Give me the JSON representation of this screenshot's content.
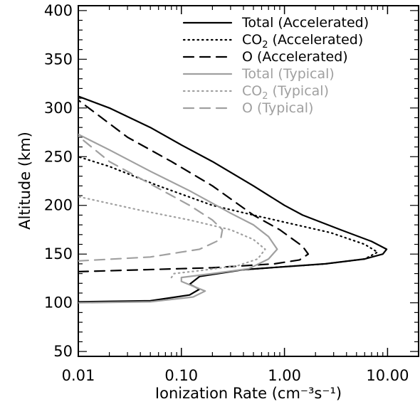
{
  "chart_data": {
    "type": "line",
    "xlabel": "Ionization Rate (cm⁻³s⁻¹)",
    "ylabel": "Altitude (km)",
    "xscale": "log",
    "xlim": [
      0.01,
      20
    ],
    "ylim": [
      45,
      405
    ],
    "x_tick_labels": [
      "0.01",
      "0.10",
      "1.00",
      "10.00"
    ],
    "y_tick_labels": [
      "50",
      "100",
      "150",
      "200",
      "250",
      "300",
      "350",
      "400"
    ],
    "legend_position": "top-right",
    "colors": {
      "accelerated": "#000000",
      "typical": "#a0a0a0"
    },
    "series": [
      {
        "name": "Total (Accelerated)",
        "color": "#000000",
        "dash": "solid",
        "points": [
          [
            0.01,
            101
          ],
          [
            0.05,
            102
          ],
          [
            0.12,
            108
          ],
          [
            0.15,
            114
          ],
          [
            0.12,
            119
          ],
          [
            0.15,
            127
          ],
          [
            0.4,
            134
          ],
          [
            1.0,
            137
          ],
          [
            2.5,
            140
          ],
          [
            6.0,
            145
          ],
          [
            9.0,
            150
          ],
          [
            9.8,
            155
          ],
          [
            7.0,
            163
          ],
          [
            3.5,
            175
          ],
          [
            1.5,
            190
          ],
          [
            1.0,
            200
          ],
          [
            0.5,
            220
          ],
          [
            0.2,
            245
          ],
          [
            0.1,
            262
          ],
          [
            0.05,
            280
          ],
          [
            0.02,
            300
          ],
          [
            0.01,
            312
          ]
        ]
      },
      {
        "name": "CO2 (Accelerated)",
        "color": "#000000",
        "dash": "dotted",
        "points": [
          [
            0.4,
            134
          ],
          [
            1.0,
            137
          ],
          [
            2.5,
            140
          ],
          [
            6.0,
            145
          ],
          [
            8.0,
            152
          ],
          [
            6.0,
            160
          ],
          [
            2.8,
            172
          ],
          [
            1.3,
            180
          ],
          [
            0.5,
            190
          ],
          [
            0.2,
            200
          ],
          [
            0.06,
            220
          ],
          [
            0.02,
            240
          ],
          [
            0.01,
            250
          ]
        ]
      },
      {
        "name": "O (Accelerated)",
        "color": "#000000",
        "dash": "dashed",
        "points": [
          [
            0.01,
            132
          ],
          [
            0.2,
            136
          ],
          [
            0.8,
            140
          ],
          [
            1.4,
            144
          ],
          [
            1.7,
            150
          ],
          [
            1.5,
            158
          ],
          [
            0.9,
            175
          ],
          [
            0.5,
            190
          ],
          [
            0.2,
            220
          ],
          [
            0.08,
            245
          ],
          [
            0.03,
            270
          ],
          [
            0.01,
            308
          ]
        ]
      },
      {
        "name": "Total (Typical)",
        "color": "#a0a0a0",
        "dash": "solid",
        "points": [
          [
            0.01,
            100
          ],
          [
            0.05,
            101
          ],
          [
            0.13,
            106
          ],
          [
            0.17,
            112
          ],
          [
            0.13,
            117
          ],
          [
            0.1,
            122
          ],
          [
            0.1,
            126
          ],
          [
            0.2,
            130
          ],
          [
            0.45,
            135
          ],
          [
            0.7,
            145
          ],
          [
            0.85,
            155
          ],
          [
            0.7,
            168
          ],
          [
            0.5,
            180
          ],
          [
            0.3,
            192
          ],
          [
            0.12,
            215
          ],
          [
            0.05,
            235
          ],
          [
            0.02,
            257
          ],
          [
            0.01,
            273
          ]
        ]
      },
      {
        "name": "CO2 (Typical)",
        "color": "#a0a0a0",
        "dash": "dotted",
        "points": [
          [
            0.08,
            126
          ],
          [
            0.085,
            130
          ],
          [
            0.15,
            133
          ],
          [
            0.35,
            138
          ],
          [
            0.55,
            145
          ],
          [
            0.65,
            155
          ],
          [
            0.5,
            165
          ],
          [
            0.3,
            175
          ],
          [
            0.12,
            185
          ],
          [
            0.04,
            195
          ],
          [
            0.01,
            209
          ]
        ]
      },
      {
        "name": "O (Typical)",
        "color": "#a0a0a0",
        "dash": "dashed",
        "points": [
          [
            0.01,
            143
          ],
          [
            0.05,
            147
          ],
          [
            0.15,
            155
          ],
          [
            0.24,
            165
          ],
          [
            0.25,
            175
          ],
          [
            0.2,
            185
          ],
          [
            0.12,
            200
          ],
          [
            0.05,
            222
          ],
          [
            0.02,
            245
          ],
          [
            0.01,
            271
          ]
        ]
      }
    ]
  }
}
